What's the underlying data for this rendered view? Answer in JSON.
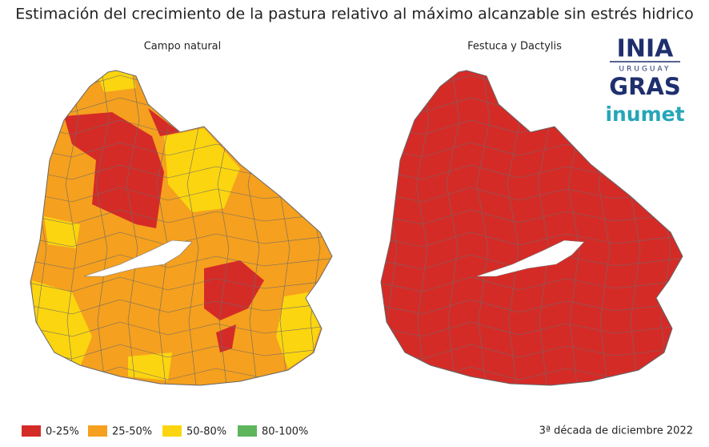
{
  "title": "Estimación del crecimiento de la pastura relativo al máximo alcanzable sin estrés hidrico",
  "maps": [
    {
      "title": "Campo natural"
    },
    {
      "title": "Festuca y Dactylis"
    }
  ],
  "legend": [
    {
      "label": "0-25%",
      "color": "#d52b27"
    },
    {
      "label": "25-50%",
      "color": "#f5a01e"
    },
    {
      "label": "50-80%",
      "color": "#fbd50f"
    },
    {
      "label": "80-100%",
      "color": "#5db55c"
    }
  ],
  "logos": {
    "inia": "INIA",
    "country": "URUGUAY",
    "gras": "GRAS",
    "inumet": "inumet"
  },
  "date": "3ª década de diciembre 2022"
}
